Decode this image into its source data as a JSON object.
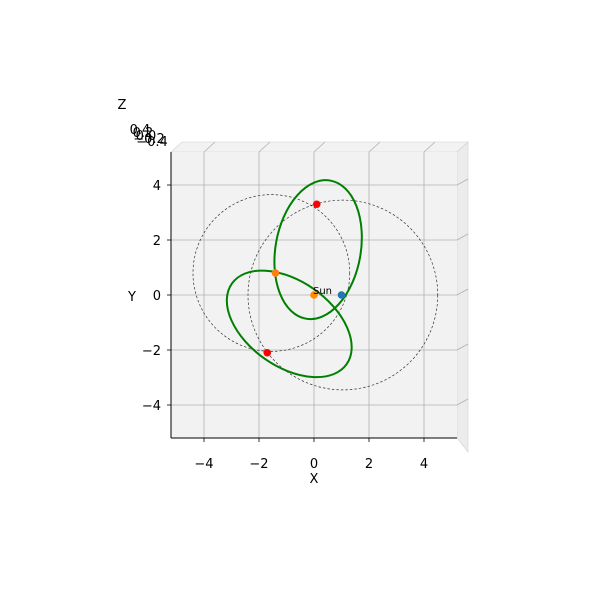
{
  "chart_data": {
    "type": "scatter",
    "projection": "3d-top-view",
    "title": "",
    "xlabel": "X",
    "ylabel": "Y",
    "zlabel": "Z",
    "xlim": [
      -5.2,
      5.2
    ],
    "ylim": [
      -5.2,
      5.2
    ],
    "xticks": [
      -4,
      -2,
      0,
      2,
      4
    ],
    "yticks": [
      -4,
      -2,
      0,
      2,
      4
    ],
    "zticks": [
      "0.4",
      "0.2",
      "0.0",
      "−0.2",
      "−0.4"
    ],
    "grid": true,
    "sun": {
      "label": "Sun",
      "x": 0.0,
      "y": 0.0,
      "color": "#ff8c00"
    },
    "reference_circles": [
      {
        "cx": -1.55,
        "cy": 0.8,
        "r": 2.85
      },
      {
        "cx": 1.05,
        "cy": 0.0,
        "r": 3.45
      }
    ],
    "orbits": [
      {
        "color": "#008000",
        "cx": 0.15,
        "cy": 1.65,
        "a": 2.55,
        "b": 1.55,
        "angle": -80
      },
      {
        "color": "#008000",
        "cx": -0.9,
        "cy": -1.05,
        "a": 2.55,
        "b": 1.55,
        "angle": 35
      }
    ],
    "points": [
      {
        "x": 0.1,
        "y": 3.3,
        "color": "#ff0000"
      },
      {
        "x": -1.7,
        "y": -2.1,
        "color": "#ff0000"
      },
      {
        "x": -1.4,
        "y": 0.8,
        "color": "#ff7f0e"
      },
      {
        "x": 1.0,
        "y": 0.0,
        "color": "#1f77b4"
      }
    ]
  }
}
